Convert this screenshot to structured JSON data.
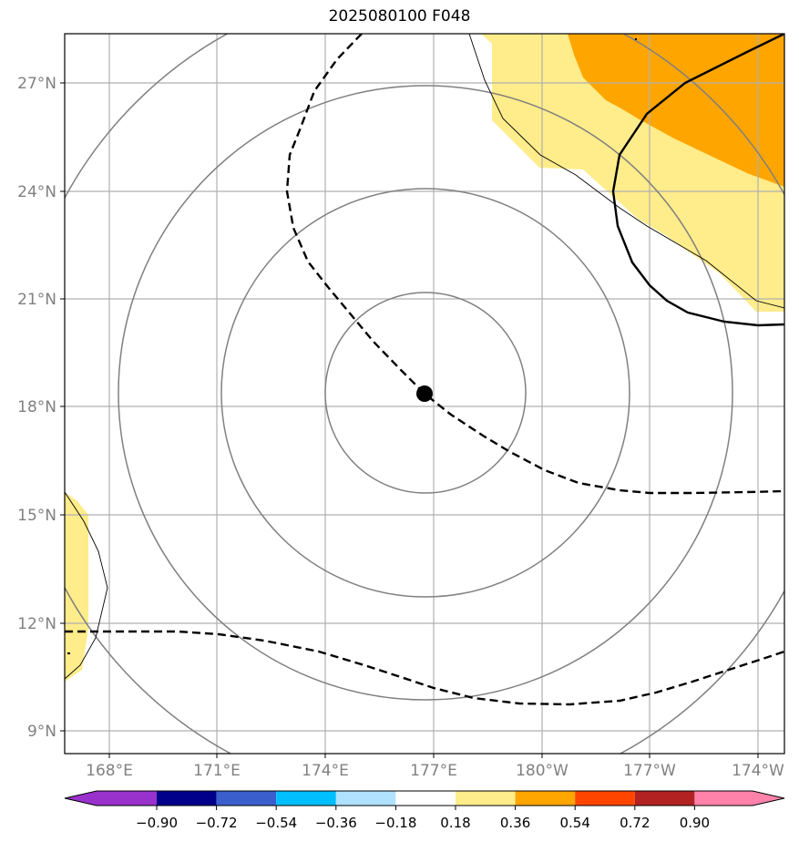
{
  "title": "2025080100 F048",
  "map": {
    "lon_labels": [
      "168°E",
      "171°E",
      "174°E",
      "177°E",
      "180°W",
      "177°W",
      "174°W"
    ],
    "lat_labels": [
      "27°N",
      "24°N",
      "21°N",
      "18°N",
      "15°N",
      "12°N",
      "9°N"
    ],
    "center_marker": {
      "lat": 18.4,
      "lon": 176.8
    },
    "grid": true
  },
  "colorbar": {
    "ticks": [
      "−0.90",
      "−0.72",
      "−0.54",
      "−0.36",
      "−0.18",
      "0.18",
      "0.36",
      "0.54",
      "0.72",
      "0.90"
    ],
    "colors": [
      "#9932cc",
      "#00008b",
      "#3a5fcd",
      "#00bfff",
      "#b0e2ff",
      "#ffffff",
      "#ffec8b",
      "#ffa500",
      "#ff4500",
      "#b22222",
      "#ff82ab"
    ]
  }
}
